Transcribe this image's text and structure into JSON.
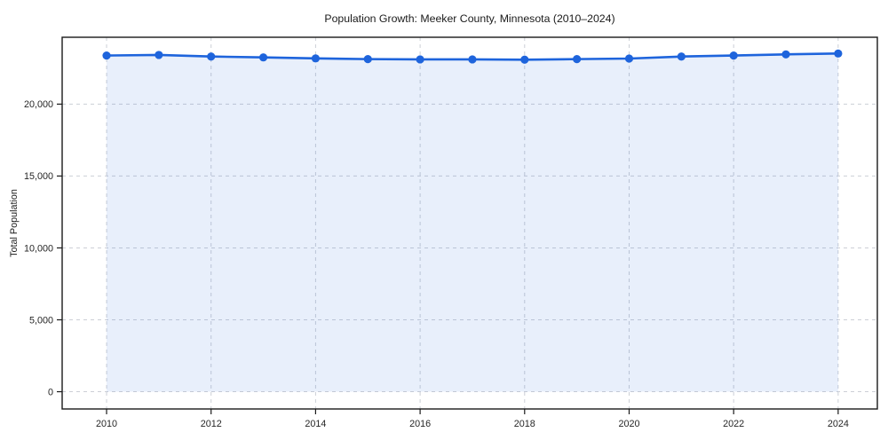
{
  "chart_data": {
    "type": "area",
    "title": "Population Growth: Meeker County, Minnesota (2010–2024)",
    "xlabel": "",
    "ylabel": "Total Population",
    "series_name": "Total Population",
    "x": [
      2010,
      2011,
      2012,
      2013,
      2014,
      2015,
      2016,
      2017,
      2018,
      2019,
      2020,
      2021,
      2022,
      2023,
      2024
    ],
    "values": [
      23380,
      23420,
      23310,
      23250,
      23180,
      23130,
      23110,
      23110,
      23090,
      23130,
      23170,
      23310,
      23380,
      23460,
      23520
    ],
    "xlim": [
      2009.15,
      2024.75
    ],
    "ylim": [
      -1200,
      24650
    ],
    "xticks": {
      "values": [
        2010,
        2012,
        2014,
        2016,
        2018,
        2020,
        2022,
        2024
      ],
      "labels": [
        "2010",
        "2012",
        "2014",
        "2016",
        "2018",
        "2020",
        "2022",
        "2024"
      ]
    },
    "yticks": {
      "values": [
        0,
        5000,
        10000,
        15000,
        20000
      ],
      "labels": [
        "0",
        "5,000",
        "10,000",
        "15,000",
        "20,000"
      ]
    },
    "grid": true,
    "grid_style": "dashed",
    "legend": "none",
    "colors": {
      "line": "#1e64dc",
      "marker": "#1e64dc",
      "fill": "#1e64dc",
      "fill_opacity": 0.1,
      "grid": "#cccfd6",
      "spine": "#1a1a1a",
      "text": "#1a1a1a",
      "background": "#ffffff"
    }
  }
}
